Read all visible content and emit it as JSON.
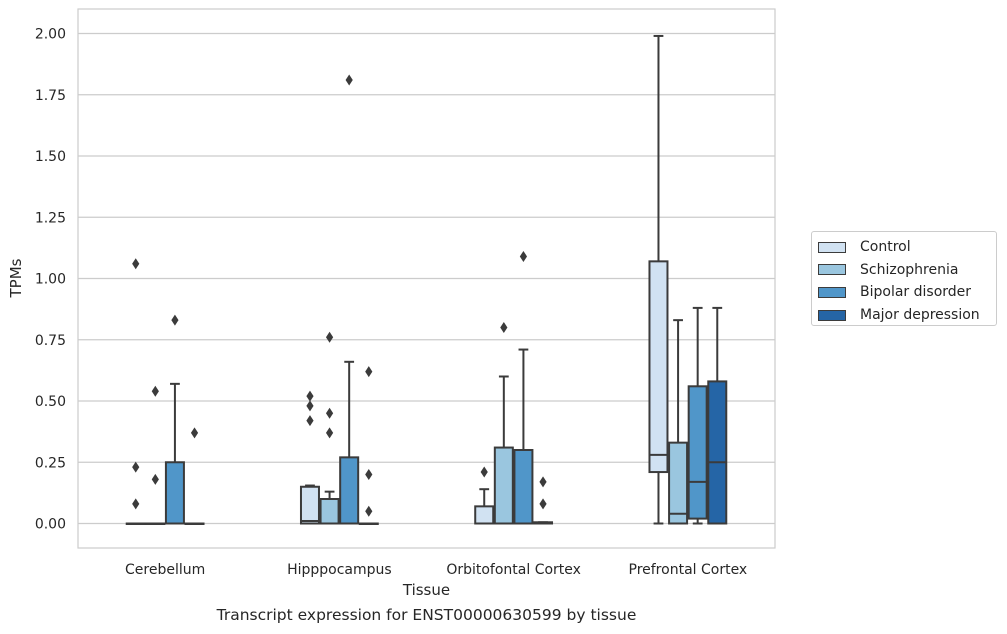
{
  "caption": "Transcript expression for ENST00000630599 by tissue",
  "chart_data": {
    "type": "box",
    "xlabel": "Tissue",
    "ylabel": "TPMs",
    "ylim": [
      -0.1,
      2.1
    ],
    "yticks": [
      0.0,
      0.25,
      0.5,
      0.75,
      1.0,
      1.25,
      1.5,
      1.75,
      2.0
    ],
    "ytick_labels": [
      "0.00",
      "0.25",
      "0.50",
      "0.75",
      "1.00",
      "1.25",
      "1.50",
      "1.75",
      "2.00"
    ],
    "grid": true,
    "legend_position": "center-right outside",
    "categories": [
      "Cerebellum",
      "Hipppocampus",
      "Orbitofontal Cortex",
      "Prefrontal Cortex"
    ],
    "series": [
      {
        "name": "Control",
        "color": "#d1e2f2",
        "boxes": [
          {
            "min": 0,
            "q1": 0,
            "median": 0,
            "q3": 0,
            "max": 0,
            "outliers": [
              1.06,
              0.23,
              0.08
            ]
          },
          {
            "min": 0,
            "q1": 0,
            "median": 0.01,
            "q3": 0.15,
            "max": 0.155,
            "outliers": [
              0.52,
              0.48,
              0.42
            ]
          },
          {
            "min": 0,
            "q1": 0,
            "median": 0,
            "q3": 0.07,
            "max": 0.14,
            "outliers": [
              0.21
            ]
          },
          {
            "min": 0,
            "q1": 0.21,
            "median": 0.28,
            "q3": 1.07,
            "max": 1.99,
            "outliers": []
          }
        ]
      },
      {
        "name": "Schizophrenia",
        "color": "#9ac6df",
        "boxes": [
          {
            "min": 0,
            "q1": 0,
            "median": 0,
            "q3": 0,
            "max": 0,
            "outliers": [
              0.54,
              0.18
            ]
          },
          {
            "min": 0,
            "q1": 0,
            "median": 0,
            "q3": 0.1,
            "max": 0.13,
            "outliers": [
              0.76,
              0.45,
              0.37
            ]
          },
          {
            "min": 0,
            "q1": 0,
            "median": 0,
            "q3": 0.31,
            "max": 0.6,
            "outliers": [
              0.8
            ]
          },
          {
            "min": 0,
            "q1": 0,
            "median": 0.04,
            "q3": 0.33,
            "max": 0.83,
            "outliers": []
          }
        ]
      },
      {
        "name": "Bipolar disorder",
        "color": "#5096c9",
        "boxes": [
          {
            "min": 0,
            "q1": 0,
            "median": 0,
            "q3": 0.25,
            "max": 0.57,
            "outliers": [
              0.83
            ]
          },
          {
            "min": 0,
            "q1": 0,
            "median": 0,
            "q3": 0.27,
            "max": 0.66,
            "outliers": [
              1.81
            ]
          },
          {
            "min": 0,
            "q1": 0,
            "median": 0,
            "q3": 0.3,
            "max": 0.71,
            "outliers": [
              1.09
            ]
          },
          {
            "min": 0,
            "q1": 0.02,
            "median": 0.17,
            "q3": 0.56,
            "max": 0.88,
            "outliers": []
          }
        ]
      },
      {
        "name": "Major depression",
        "color": "#2565a6",
        "boxes": [
          {
            "min": 0,
            "q1": 0,
            "median": 0,
            "q3": 0,
            "max": 0,
            "outliers": [
              0.37
            ]
          },
          {
            "min": 0,
            "q1": 0,
            "median": 0,
            "q3": 0,
            "max": 0,
            "outliers": [
              0.62,
              0.2,
              0.05
            ]
          },
          {
            "min": 0,
            "q1": 0,
            "median": 0,
            "q3": 0.005,
            "max": 0.005,
            "outliers": [
              0.17,
              0.08
            ]
          },
          {
            "min": 0,
            "q1": 0,
            "median": 0.25,
            "q3": 0.58,
            "max": 0.88,
            "outliers": []
          }
        ]
      }
    ]
  }
}
